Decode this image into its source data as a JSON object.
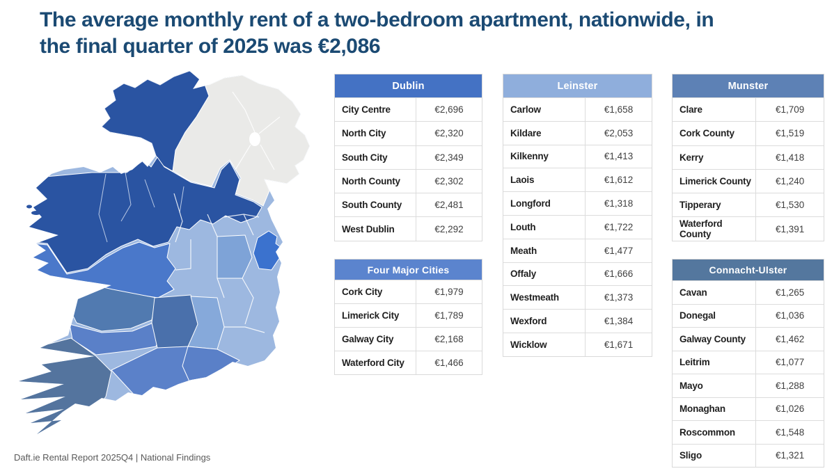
{
  "header": {
    "line1": "The average monthly rent of a two-bedroom apartment, nationwide, in",
    "line2": "the final quarter of 2025 was €2,086"
  },
  "footer": {
    "text": "Daft.ie Rental Report 2025Q4 | National Findings"
  },
  "colors": {
    "title_text": "#1B4A73",
    "footer_text": "#595959",
    "grid_line": "#DCDCDC"
  },
  "chart_data": [
    {
      "type": "table",
      "title": "Dublin",
      "header_color": "#4472C4",
      "columns": [
        "area",
        "avg_monthly_rent"
      ],
      "rows": [
        [
          "City Centre",
          "€2,696"
        ],
        [
          "North City",
          "€2,320"
        ],
        [
          "South City",
          "€2,349"
        ],
        [
          "North County",
          "€2,302"
        ],
        [
          "South County",
          "€2,481"
        ],
        [
          "West Dublin",
          "€2,292"
        ]
      ]
    },
    {
      "type": "table",
      "title": "Leinster",
      "header_color": "#8FAEDC",
      "columns": [
        "county",
        "avg_monthly_rent"
      ],
      "rows": [
        [
          "Carlow",
          "€1,658"
        ],
        [
          "Kildare",
          "€2,053"
        ],
        [
          "Kilkenny",
          "€1,413"
        ],
        [
          "Laois",
          "€1,612"
        ],
        [
          "Longford",
          "€1,318"
        ],
        [
          "Louth",
          "€1,722"
        ],
        [
          "Meath",
          "€1,477"
        ],
        [
          "Offaly",
          "€1,666"
        ],
        [
          "Westmeath",
          "€1,373"
        ],
        [
          "Wexford",
          "€1,384"
        ],
        [
          "Wicklow",
          "€1,671"
        ]
      ]
    },
    {
      "type": "table",
      "title": "Munster",
      "header_color": "#5D81B5",
      "columns": [
        "county",
        "avg_monthly_rent"
      ],
      "rows": [
        [
          "Clare",
          "€1,709"
        ],
        [
          "Cork County",
          "€1,519"
        ],
        [
          "Kerry",
          "€1,418"
        ],
        [
          "Limerick County",
          "€1,240"
        ],
        [
          "Tipperary",
          "€1,530"
        ],
        [
          "Waterford County",
          "€1,391"
        ]
      ]
    },
    {
      "type": "table",
      "title": "Four Major Cities",
      "header_color": "#5B84CE",
      "columns": [
        "city",
        "avg_monthly_rent"
      ],
      "rows": [
        [
          "Cork City",
          "€1,979"
        ],
        [
          "Limerick City",
          "€1,789"
        ],
        [
          "Galway City",
          "€2,168"
        ],
        [
          "Waterford City",
          "€1,466"
        ]
      ]
    },
    {
      "type": "table",
      "title": "Connacht-Ulster",
      "header_color": "#54779E",
      "columns": [
        "county",
        "avg_monthly_rent"
      ],
      "rows": [
        [
          "Cavan",
          "€1,265"
        ],
        [
          "Donegal",
          "€1,036"
        ],
        [
          "Galway County",
          "€1,462"
        ],
        [
          "Leitrim",
          "€1,077"
        ],
        [
          "Mayo",
          "€1,288"
        ],
        [
          "Monaghan",
          "€1,026"
        ],
        [
          "Roscommon",
          "€1,548"
        ],
        [
          "Sligo",
          "€1,321"
        ]
      ]
    },
    {
      "type": "choropleth",
      "title": "Ireland county map shaded by average rent",
      "note": "Northern Ireland shown in grey (no data); Republic counties shaded in blues"
    }
  ],
  "map": {
    "name": "ireland-choropleth",
    "region_colors": {
      "sea": "#FFFFFF",
      "base-leinster": "#9DB8E0",
      "northern-ireland": "#EAEAE8",
      "donegal": "#2A54A2",
      "northwest-band": "#2A54A2",
      "offshore-islands": "#2A54A2",
      "galway-roscommon": "#4A78CA",
      "clare": "#517AB0",
      "limerick": "#5A80C8",
      "kerry": "#54749E",
      "cork": "#5B81C9",
      "tipperary": "#4A70AB",
      "waterford": "#5A80C8",
      "kilkenny": "#86A9DA",
      "kildare": "#7EA3D7",
      "dublin": "#3B72CE",
      "lough-neagh": "#FFFFFF"
    }
  }
}
